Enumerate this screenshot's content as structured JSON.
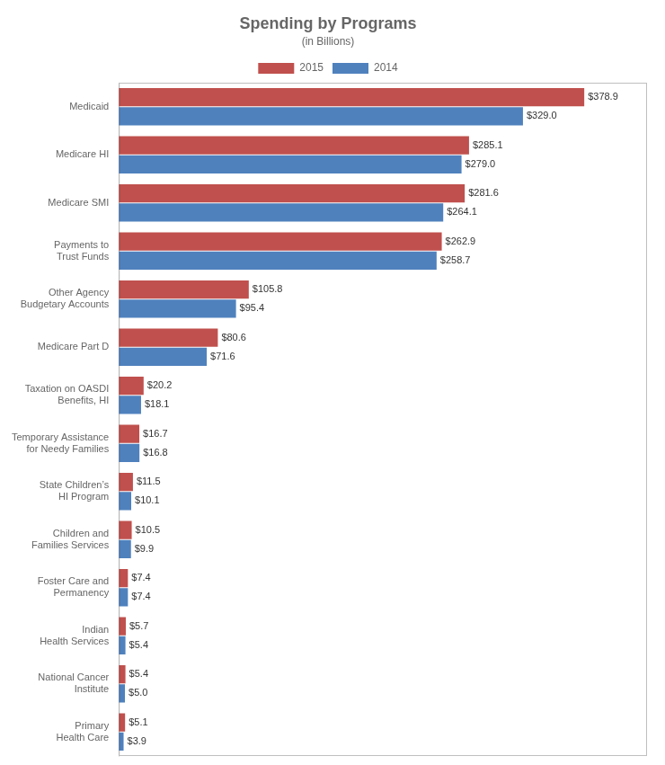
{
  "chart_data": {
    "type": "bar",
    "orientation": "horizontal",
    "title": "Spending by Programs",
    "subtitle": "(in Billions)",
    "categories": [
      "Medicaid",
      "Medicare HI",
      "Medicare SMI",
      "Payments to\nTrust Funds",
      "Other Agency\nBudgetary Accounts",
      "Medicare Part D",
      "Taxation on OASDI\nBenefits, HI",
      "Temporary Assistance\nfor Needy Families",
      "State Children’s\nHI Program",
      "Children and\nFamilies Services",
      "Foster Care and\nPermanency",
      "Indian\nHealth Services",
      "National Cancer\nInstitute",
      "Primary\nHealth Care"
    ],
    "series": [
      {
        "name": "2015",
        "color": "#C0504D",
        "values": [
          378.9,
          285.1,
          281.6,
          262.9,
          105.8,
          80.6,
          20.2,
          16.7,
          11.5,
          10.5,
          7.4,
          5.7,
          5.4,
          5.1
        ],
        "value_labels": [
          "$378.9",
          "$285.1",
          "$281.6",
          "$262.9",
          "$105.8",
          "$80.6",
          "$20.2",
          "$16.7",
          "$11.5",
          "$10.5",
          "$7.4",
          "$5.7",
          "$5.4",
          "$5.1"
        ]
      },
      {
        "name": "2014",
        "color": "#4F81BD",
        "values": [
          329.0,
          279.0,
          264.1,
          258.7,
          95.4,
          71.6,
          18.1,
          16.8,
          10.1,
          9.9,
          7.4,
          5.4,
          5.0,
          3.9
        ],
        "value_labels": [
          "$329.0",
          "$279.0",
          "$264.1",
          "$258.7",
          "$95.4",
          "$71.6",
          "$18.1",
          "$16.8",
          "$10.1",
          "$9.9",
          "$7.4",
          "$5.4",
          "$5.0",
          "$3.9"
        ]
      }
    ],
    "xlim": [
      0,
      430
    ],
    "tick_labels": "y",
    "grid": false,
    "legend": "top",
    "data_labels": true
  }
}
